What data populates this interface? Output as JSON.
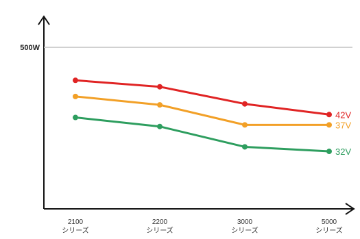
{
  "chart_data": {
    "type": "line",
    "title": "",
    "xlabel": "",
    "ylabel": "",
    "categories": [
      [
        "2100",
        "シリーズ"
      ],
      [
        "2200",
        "シリーズ"
      ],
      [
        "3000",
        "シリーズ"
      ],
      [
        "5000",
        "シリーズ"
      ]
    ],
    "ylim": [
      0,
      600
    ],
    "reference_line": {
      "value": 500,
      "label": "500W",
      "color": "#c8c8c8"
    },
    "series": [
      {
        "name": "42V",
        "color": "#e02424",
        "values": [
          398,
          378,
          325,
          292
        ]
      },
      {
        "name": "37V",
        "color": "#f2a027",
        "values": [
          348,
          322,
          260,
          260
        ]
      },
      {
        "name": "32V",
        "color": "#2e9e5f",
        "values": [
          283,
          255,
          192,
          178
        ]
      }
    ],
    "grid": false,
    "legend": "right-end labels"
  }
}
